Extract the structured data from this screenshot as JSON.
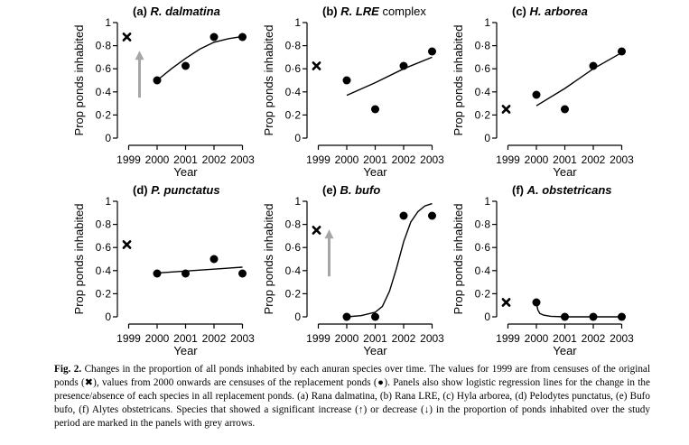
{
  "common": {
    "ylabel": "Prop ponds inhabited",
    "xlabel": "Year",
    "yticks": [
      0,
      0.2,
      0.4,
      0.6,
      0.8,
      1
    ],
    "ytick_labels": [
      "0",
      "0·2",
      "0·4",
      "0·6",
      "0·8",
      "1"
    ],
    "xticks": [
      1999,
      2000,
      2001,
      2002,
      2003
    ],
    "xtick_labels": [
      "1999",
      "2000",
      "2001",
      "2002",
      "2003"
    ],
    "arrow_color": "#a6a6a6"
  },
  "chart_data": [
    {
      "type": "scatter",
      "label": "(a)",
      "title": "R. dalmatina",
      "title_italic": true,
      "xlabel": "Year",
      "ylabel": "Prop ponds inhabited",
      "ylim": [
        0,
        1
      ],
      "original_1999": 0.875,
      "x": [
        2000,
        2001,
        2002,
        2003
      ],
      "values": [
        0.5,
        0.625,
        0.875,
        0.875
      ],
      "fit": {
        "x": [
          2000,
          2000.5,
          2001,
          2001.5,
          2002,
          2002.5,
          2003
        ],
        "y": [
          0.5,
          0.6,
          0.69,
          0.77,
          0.83,
          0.86,
          0.88
        ]
      },
      "trend_arrow": "up"
    },
    {
      "type": "scatter",
      "label": "(b)",
      "title": "R. LRE",
      "title_italic": true,
      "title_suffix": "complex",
      "xlabel": "Year",
      "ylabel": "Prop ponds inhabited",
      "ylim": [
        0,
        1
      ],
      "original_1999": 0.625,
      "x": [
        2000,
        2001,
        2002,
        2003
      ],
      "values": [
        0.5,
        0.25,
        0.625,
        0.75
      ],
      "fit": {
        "x": [
          2000,
          2001,
          2002,
          2003
        ],
        "y": [
          0.37,
          0.48,
          0.6,
          0.7
        ]
      },
      "trend_arrow": null
    },
    {
      "type": "scatter",
      "label": "(c)",
      "title": "H. arborea",
      "title_italic": true,
      "xlabel": "Year",
      "ylabel": "Prop ponds inhabited",
      "ylim": [
        0,
        1
      ],
      "original_1999": 0.25,
      "x": [
        2000,
        2001,
        2002,
        2003
      ],
      "values": [
        0.375,
        0.25,
        0.625,
        0.75
      ],
      "fit": {
        "x": [
          2000,
          2001,
          2002,
          2003
        ],
        "y": [
          0.28,
          0.43,
          0.6,
          0.74
        ]
      },
      "trend_arrow": null
    },
    {
      "type": "scatter",
      "label": "(d)",
      "title": "P. punctatus",
      "title_italic": true,
      "xlabel": "Year",
      "ylabel": "Prop ponds inhabited",
      "ylim": [
        0,
        1
      ],
      "original_1999": 0.625,
      "x": [
        2000,
        2001,
        2002,
        2003
      ],
      "values": [
        0.375,
        0.375,
        0.5,
        0.375
      ],
      "fit": {
        "x": [
          2000,
          2003
        ],
        "y": [
          0.38,
          0.43
        ]
      },
      "trend_arrow": null
    },
    {
      "type": "scatter",
      "label": "(e)",
      "title": "B. bufo",
      "title_italic": true,
      "xlabel": "Year",
      "ylabel": "Prop ponds inhabited",
      "ylim": [
        0,
        1
      ],
      "original_1999": 0.75,
      "x": [
        2000,
        2001,
        2002,
        2003
      ],
      "values": [
        0.0,
        0.0,
        0.875,
        0.875
      ],
      "fit": {
        "x": [
          2000,
          2000.5,
          2001,
          2001.25,
          2001.5,
          2001.75,
          2002,
          2002.25,
          2002.5,
          2002.75,
          2003
        ],
        "y": [
          0.0,
          0.01,
          0.04,
          0.09,
          0.22,
          0.42,
          0.65,
          0.82,
          0.91,
          0.96,
          0.98
        ]
      },
      "trend_arrow": "up"
    },
    {
      "type": "scatter",
      "label": "(f)",
      "title": "A. obstetricans",
      "title_italic": true,
      "xlabel": "Year",
      "ylabel": "Prop ponds inhabited",
      "ylim": [
        0,
        1
      ],
      "original_1999": 0.125,
      "x": [
        2000,
        2001,
        2002,
        2003
      ],
      "values": [
        0.125,
        0.0,
        0.0,
        0.0
      ],
      "fit": {
        "x": [
          2000,
          2000.05,
          2000.12,
          2000.25,
          2000.5,
          2001,
          2002,
          2003
        ],
        "y": [
          0.125,
          0.06,
          0.03,
          0.015,
          0.005,
          0.0,
          0.0,
          0.0
        ]
      },
      "trend_arrow": null
    }
  ],
  "caption": {
    "label": "Fig. 2.",
    "text": "Changes in the proportion of all ponds inhabited by each anuran species over time. The values for 1999 are from censuses of the original ponds (✖), values from 2000 onwards are censuses of the replacement ponds (●). Panels also show logistic regression lines for the change in the presence/absence of each species in all replacement ponds. (a) Rana dalmatina, (b) Rana LRE, (c) Hyla arborea, (d) Pelodytes punctatus, (e) Bufo bufo, (f) Alytes obstetricans. Species that showed a significant increase (↑) or decrease (↓) in the proportion of ponds inhabited over the study period are marked in the panels with grey arrows."
  }
}
